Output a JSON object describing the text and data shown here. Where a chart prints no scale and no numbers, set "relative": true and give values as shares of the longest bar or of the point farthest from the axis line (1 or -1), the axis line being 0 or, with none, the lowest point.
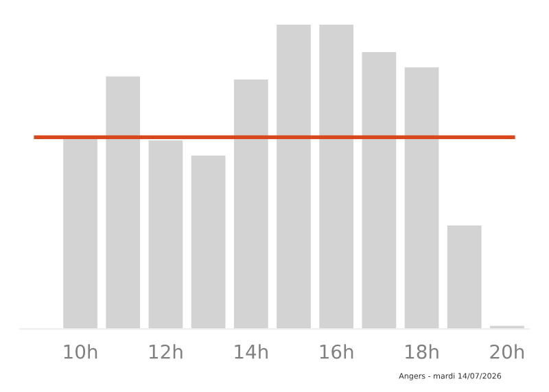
{
  "chart_data": {
    "type": "bar",
    "relative": true,
    "categories": [
      "10h",
      null,
      "12h",
      null,
      "14h",
      null,
      "16h",
      null,
      "18h",
      null,
      "20h"
    ],
    "values": [
      0.63,
      0.83,
      0.62,
      0.57,
      0.82,
      1,
      1,
      0.91,
      0.86,
      0.34,
      0.01
    ],
    "color": "#d3d3d3",
    "ref_lines": [
      {
        "axis": "y",
        "value": 0.63,
        "color": "#d9481c"
      }
    ],
    "annotations": [
      "Angers - mardi 14/07/2026"
    ],
    "grid": false,
    "legend": false
  }
}
